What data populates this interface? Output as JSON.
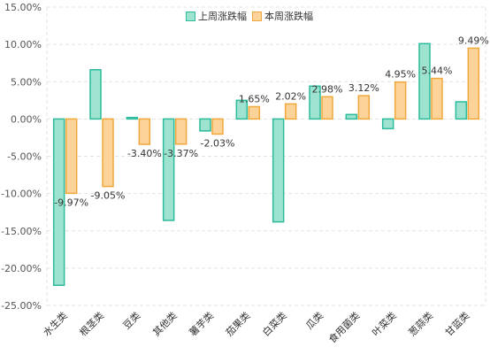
{
  "chart_data": {
    "type": "bar",
    "categories": [
      "水生类",
      "根茎类",
      "豆类",
      "其他类",
      "薯芋类",
      "茄果类",
      "白菜类",
      "瓜类",
      "食用菌类",
      "叶菜类",
      "葱蒜类",
      "甘蓝类"
    ],
    "series": [
      {
        "name": "上周涨跌幅",
        "values": [
          -22.3,
          6.6,
          0.2,
          -13.6,
          -1.6,
          2.5,
          -13.8,
          4.4,
          0.6,
          -1.3,
          10.1,
          2.3
        ],
        "color": "#2dbb9b",
        "fill": "#9de3d0"
      },
      {
        "name": "本周涨跌幅",
        "values": [
          -9.97,
          -9.05,
          -3.4,
          -3.37,
          -2.03,
          1.65,
          2.02,
          2.98,
          3.12,
          4.95,
          5.44,
          9.49
        ],
        "color": "#f0a83c",
        "fill": "#fdd39a",
        "labels": [
          "-9.97%",
          "-9.05%",
          "-3.40%",
          "-3.37%",
          "-2.03%",
          "1.65%",
          "2.02%",
          "2.98%",
          "3.12%",
          "4.95%",
          "5.44%",
          "9.49%"
        ]
      }
    ],
    "y_ticks": [
      "15.00%",
      "10.00%",
      "5.00%",
      "0.00%",
      "-5.00%",
      "-10.00%",
      "-15.00%",
      "-20.00%",
      "-25.00%"
    ],
    "ylim": [
      -25,
      15
    ],
    "grid": true,
    "legend_position": "top-center"
  }
}
